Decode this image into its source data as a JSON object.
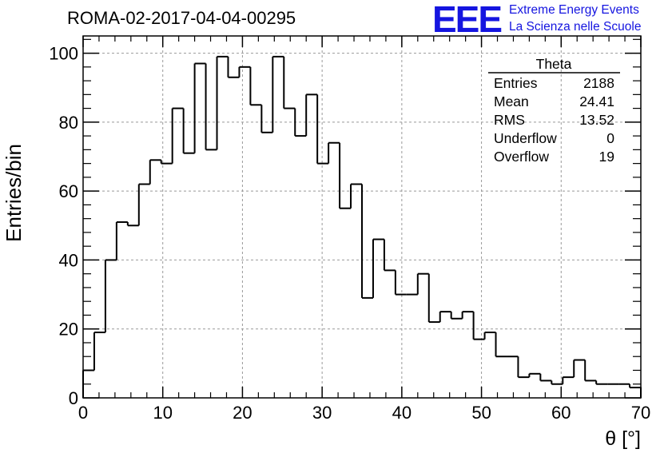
{
  "header": {
    "title": "ROMA-02-2017-04-04-00295",
    "logo": "EEE",
    "logo_line1": "Extreme Energy Events",
    "logo_line2": "La Scienza nelle Scuole"
  },
  "stats": {
    "title": "Theta",
    "rows": [
      {
        "label": "Entries",
        "value": "2188"
      },
      {
        "label": "Mean",
        "value": "24.41"
      },
      {
        "label": "RMS",
        "value": "13.52"
      },
      {
        "label": "Underflow",
        "value": "0"
      },
      {
        "label": "Overflow",
        "value": "19"
      }
    ]
  },
  "chart_data": {
    "type": "bar",
    "style": "step-histogram",
    "title": "ROMA-02-2017-04-04-00295",
    "xlabel": "θ [°]",
    "ylabel": "Entries/bin",
    "xlim": [
      0,
      70
    ],
    "ylim": [
      0,
      105
    ],
    "bin_width": 1.4,
    "x_ticks": [
      "0",
      "10",
      "20",
      "30",
      "40",
      "50",
      "60",
      "70"
    ],
    "y_ticks": [
      "0",
      "20",
      "40",
      "60",
      "80",
      "100"
    ],
    "grid": true,
    "values": [
      8,
      19,
      40,
      51,
      50,
      62,
      69,
      68,
      84,
      71,
      97,
      72,
      99,
      93,
      96,
      85,
      77,
      99,
      84,
      76,
      88,
      68,
      74,
      55,
      62,
      29,
      46,
      37,
      30,
      30,
      36,
      22,
      25,
      23,
      25,
      17,
      19,
      12,
      12,
      6,
      7,
      5,
      4,
      6,
      11,
      5,
      4,
      4,
      4,
      3
    ]
  }
}
